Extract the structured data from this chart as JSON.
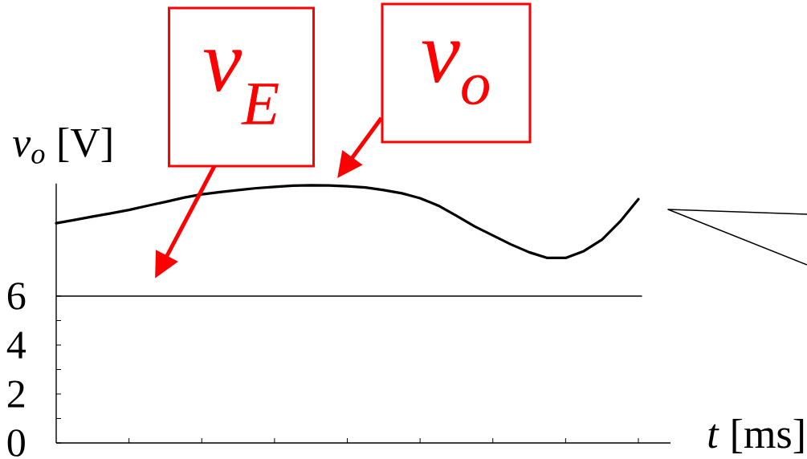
{
  "chart_data": {
    "type": "line",
    "xlabel": "*t* [ms]",
    "ylabel": "*v$_{o}$* [V]",
    "categories": [
      null,
      null,
      null,
      null,
      null,
      null,
      null,
      null,
      null,
      null,
      null,
      null,
      null,
      null,
      null,
      null,
      null,
      null,
      null,
      null,
      null,
      null,
      null,
      null,
      null,
      null,
      null,
      null,
      null,
      null,
      null,
      null,
      null
    ],
    "series": [
      {
        "name": "v$_{o}$",
        "color": "#000000",
        "values": [
          8.98,
          9.11,
          9.25,
          9.38,
          9.52,
          9.69,
          9.85,
          10.02,
          10.16,
          10.25,
          10.33,
          10.41,
          10.46,
          10.51,
          10.53,
          10.52,
          10.49,
          10.44,
          10.33,
          10.2,
          10.0,
          9.7,
          9.28,
          8.85,
          8.48,
          8.11,
          7.79,
          7.56,
          7.56,
          7.84,
          8.31,
          9.05,
          9.96
        ]
      }
    ],
    "ylim": [
      0,
      10.6
    ],
    "yticks": [
      0,
      {
        "value": 1,
        "label": null
      },
      2,
      {
        "value": 3,
        "label": null
      },
      4,
      {
        "value": 5,
        "label": null
      },
      6
    ],
    "ref_lines": [
      {
        "axis": "y",
        "value": 6,
        "label": "v$_{E}$",
        "color": "#000000"
      }
    ],
    "tick_labels": "y"
  }
}
